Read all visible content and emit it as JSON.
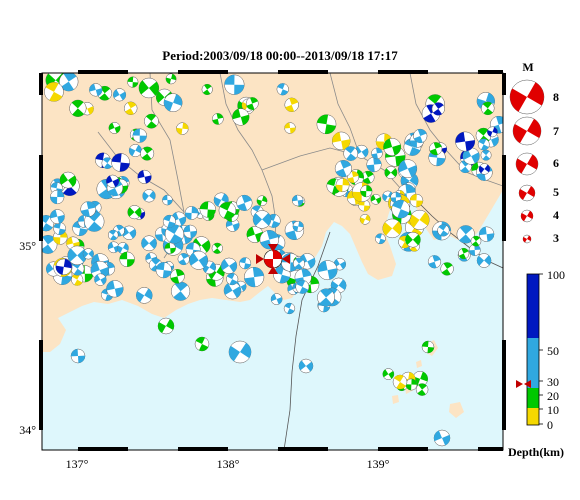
{
  "title": "Period:2003/09/18 00:00--2013/09/18 17:17",
  "colors": {
    "land": "#fce4c4",
    "sea": "#def7fc",
    "beachball_shallow": "#f5d800",
    "beachball_10_20": "#00c800",
    "beachball_20_50": "#30a8e0",
    "beachball_deep": "#0018c0",
    "mainshock": "#e00000"
  },
  "map": {
    "lon_labels": [
      "137°",
      "138°",
      "139°"
    ],
    "lat_labels": [
      "35°",
      "34°"
    ]
  },
  "magnitude_legend": {
    "title": "M",
    "labels": [
      "8",
      "7",
      "6",
      "5",
      "4",
      "3"
    ]
  },
  "depth_scale": {
    "labels": [
      "100",
      "50",
      "30",
      "20",
      "10",
      "0"
    ],
    "unit_label": "Depth(km)"
  }
}
